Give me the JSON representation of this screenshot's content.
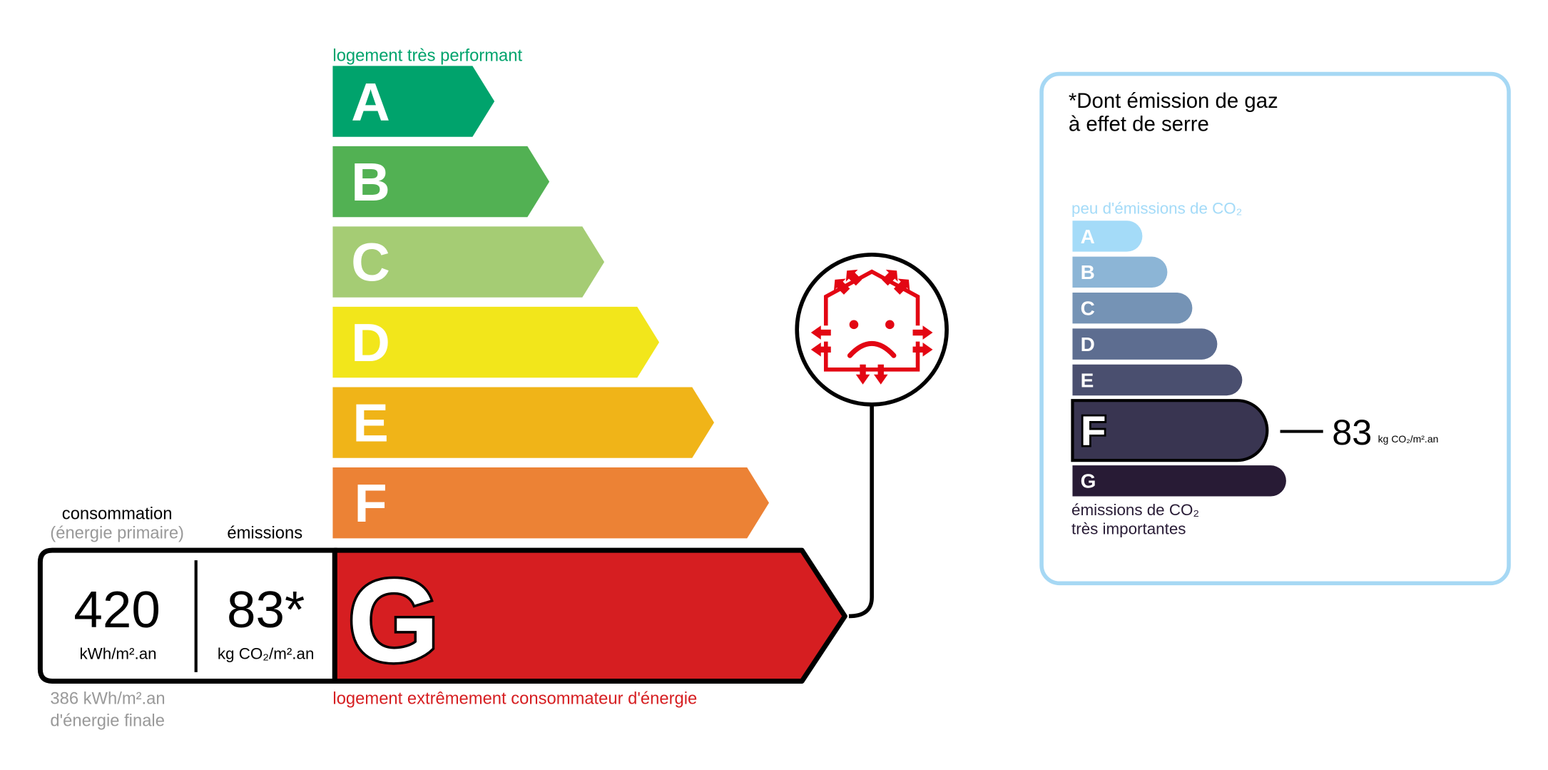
{
  "energy_scale": {
    "top_label": "logement très performant",
    "bottom_label": "logement extrêmement consommateur d'énergie",
    "top_label_color": "#00a36c",
    "bottom_label_color": "#d61e21",
    "classes": [
      {
        "letter": "A",
        "color": "#00a36c"
      },
      {
        "letter": "B",
        "color": "#52b153"
      },
      {
        "letter": "C",
        "color": "#a5cc74"
      },
      {
        "letter": "D",
        "color": "#f2e61b"
      },
      {
        "letter": "E",
        "color": "#f0b418"
      },
      {
        "letter": "F",
        "color": "#ec8235"
      },
      {
        "letter": "G",
        "color": "#d61e21"
      }
    ],
    "current_class": "G"
  },
  "readout": {
    "consumption_label": "consommation",
    "consumption_sublabel": "(énergie primaire)",
    "emissions_label": "émissions",
    "consumption_value": "420",
    "consumption_unit": "kWh/m².an",
    "emissions_value": "83*",
    "emissions_unit": "kg CO₂/m².an",
    "final_energy_line1": "386 kWh/m².an",
    "final_energy_line2": "d'énergie finale"
  },
  "passoire_icon": "house-heat-loss-sad-face-icon",
  "ges_panel": {
    "title_line1": "*Dont émission de gaz",
    "title_line2": "à effet de serre",
    "top_label": "peu d'émissions de CO₂",
    "bottom_label_line1": "émissions de CO₂",
    "bottom_label_line2": "très importantes",
    "border_color": "#a6d8f4",
    "classes": [
      {
        "letter": "A",
        "color": "#a4dbf8"
      },
      {
        "letter": "B",
        "color": "#8cb5d6"
      },
      {
        "letter": "C",
        "color": "#7593b5"
      },
      {
        "letter": "D",
        "color": "#5d6d90"
      },
      {
        "letter": "E",
        "color": "#4a4f6f"
      },
      {
        "letter": "F",
        "color": "#393551"
      },
      {
        "letter": "G",
        "color": "#281b35"
      }
    ],
    "current_class": "F",
    "value": "83",
    "unit": "kg CO₂/m².an"
  }
}
